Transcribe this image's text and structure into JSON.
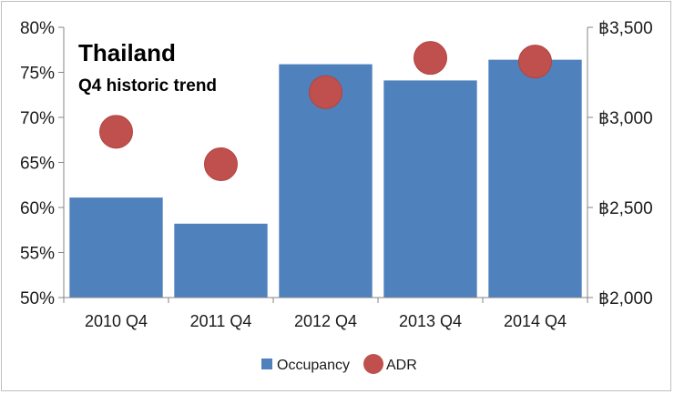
{
  "chart_data": {
    "type": "bar",
    "title": "Thailand",
    "subtitle": "Q4 historic trend",
    "categories": [
      "2010 Q4",
      "2011 Q4",
      "2012 Q4",
      "2013 Q4",
      "2014 Q4"
    ],
    "series": [
      {
        "name": "Occupancy",
        "type": "bar",
        "axis": "left",
        "color": "#4f81bd",
        "values": [
          61.1,
          58.2,
          75.9,
          74.1,
          76.4
        ]
      },
      {
        "name": "ADR",
        "type": "scatter",
        "axis": "right",
        "color": "#c0504d",
        "values": [
          2920,
          2740,
          3140,
          3330,
          3310
        ]
      }
    ],
    "y_left": {
      "ylim": [
        50,
        80
      ],
      "ticks": [
        50,
        55,
        60,
        65,
        70,
        75,
        80
      ],
      "tick_labels": [
        "50%",
        "55%",
        "60%",
        "65%",
        "70%",
        "75%",
        "80%"
      ]
    },
    "y_right": {
      "ylim": [
        2000,
        3500
      ],
      "ticks": [
        2000,
        2500,
        3000,
        3500
      ],
      "tick_labels": [
        "฿2,000",
        "฿2,500",
        "฿3,000",
        "฿3,500"
      ]
    },
    "grid": false,
    "legend": {
      "placement": "bottom",
      "entries": [
        "Occupancy",
        "ADR"
      ]
    }
  }
}
